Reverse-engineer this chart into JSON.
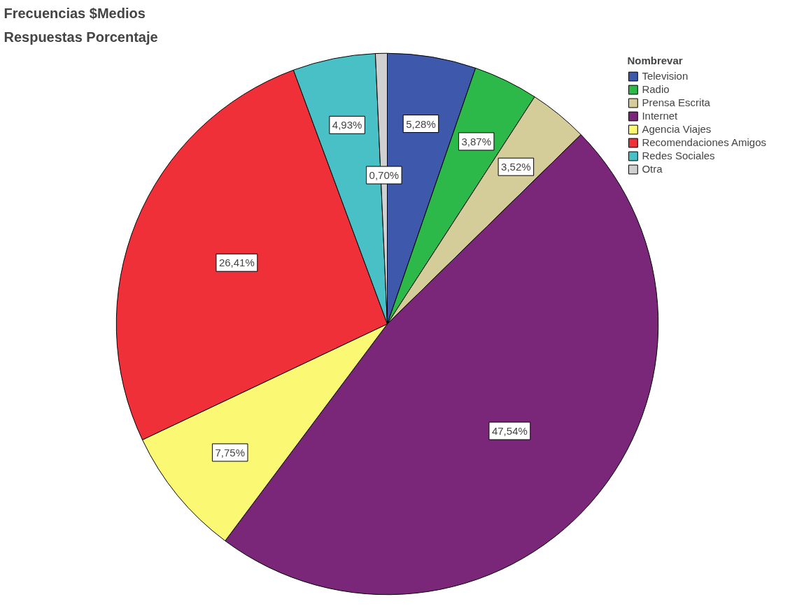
{
  "chart_data": {
    "type": "pie",
    "title": "Frecuencias $Medios",
    "subtitle": "Respuestas Porcentaje",
    "legend_title": "Nombrevar",
    "legend": "top right",
    "categories": [
      "Television",
      "Radio",
      "Prensa Escrita",
      "Internet",
      "Agencia Viajes",
      "Recomendaciones Amigos",
      "Redes Sociales",
      "Otra"
    ],
    "values": [
      5.28,
      3.87,
      3.52,
      47.54,
      7.75,
      26.41,
      4.93,
      0.7
    ],
    "colors": [
      "#3e58ac",
      "#2db84a",
      "#d4cc99",
      "#7b2779",
      "#fbf873",
      "#ef3038",
      "#49c0c6",
      "#d0d0d0"
    ],
    "value_labels": [
      "5,28%",
      "3,87%",
      "3,52%",
      "47,54%",
      "7,75%",
      "26,41%",
      "4,93%",
      "0,70%"
    ]
  }
}
